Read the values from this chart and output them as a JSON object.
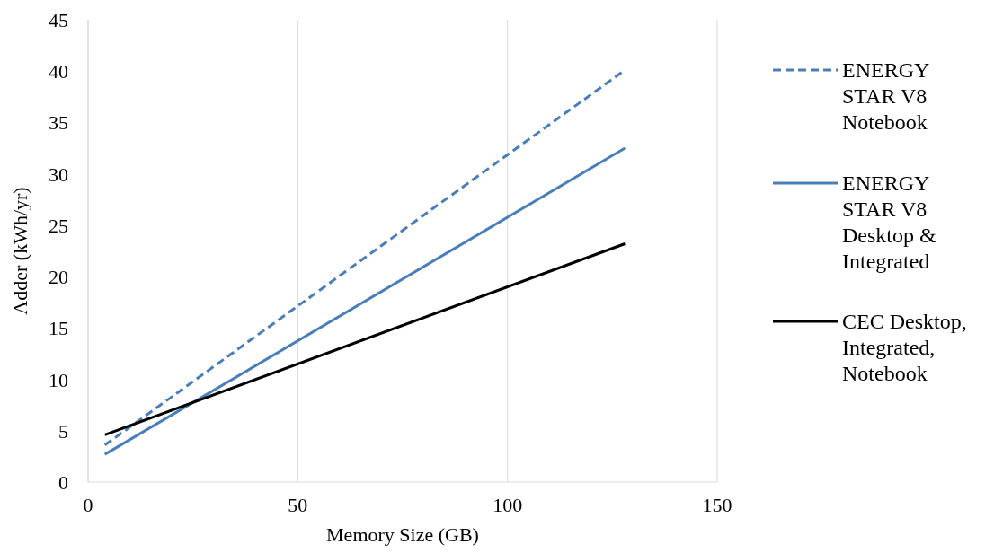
{
  "chart_data": {
    "type": "line",
    "xlabel": "Memory Size (GB)",
    "ylabel": "Adder (kWh/yr)",
    "xlim": [
      0,
      150
    ],
    "xticks": [
      0,
      50,
      100,
      150
    ],
    "ylim": [
      0,
      45
    ],
    "yticks": [
      0,
      5,
      10,
      15,
      20,
      25,
      30,
      35,
      40,
      45
    ],
    "grid": "x",
    "legend": "right",
    "marker": "none",
    "x": [
      4,
      128
    ],
    "series": [
      {
        "name": "ENERGY STAR V8 Notebook",
        "color": "#4a7ebb",
        "line_style": "dashed",
        "values": [
          3.6,
          40.1
        ]
      },
      {
        "name": "ENERGY STAR V8 Desktop & Integrated",
        "color": "#4a7ebb",
        "line_style": "solid",
        "values": [
          2.7,
          32.5
        ]
      },
      {
        "name": "CEC Desktop, Integrated, Notebook",
        "color": "#000000",
        "line_style": "solid",
        "values": [
          4.6,
          23.2
        ]
      }
    ]
  }
}
